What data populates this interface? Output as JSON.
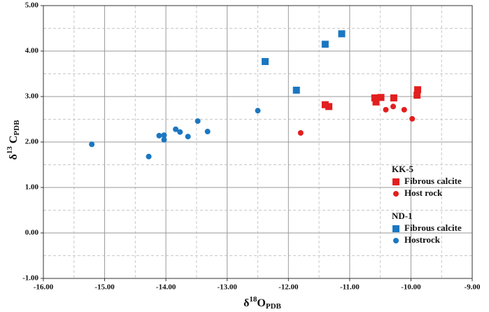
{
  "chart_data": {
    "type": "scatter",
    "x_label": {
      "prefix": "δ",
      "sup": "18",
      "main": "O",
      "sub": "PDB"
    },
    "y_label": {
      "prefix": "δ",
      "sup": "13",
      "main": " C",
      "sub": "PDB"
    },
    "xlim": [
      -16,
      -9
    ],
    "ylim": [
      -1,
      5
    ],
    "xticks": [
      {
        "value": -16,
        "label": "-16.00"
      },
      {
        "value": -15,
        "label": "-15.00"
      },
      {
        "value": -14,
        "label": "-14.00"
      },
      {
        "value": -13,
        "label": "-13.00"
      },
      {
        "value": -12,
        "label": "-12.00"
      },
      {
        "value": -11,
        "label": "-11.00"
      },
      {
        "value": -10,
        "label": "-10.00"
      },
      {
        "value": -9,
        "label": "-9.00"
      }
    ],
    "yticks": [
      {
        "value": -1,
        "label": "-1.00"
      },
      {
        "value": 0,
        "label": "0.00"
      },
      {
        "value": 1,
        "label": "1.00"
      },
      {
        "value": 2,
        "label": "2.00"
      },
      {
        "value": 3,
        "label": "3.00"
      },
      {
        "value": 4,
        "label": "4.00"
      },
      {
        "value": 5,
        "label": "5.00"
      }
    ],
    "x_minor_gridlines": [
      -15.5,
      -14.5,
      -13.5,
      -12.5,
      -11.5,
      -10.5,
      -9.5
    ],
    "y_minor_gridlines": [
      -0.5,
      0.5,
      1.5,
      2.5,
      3.5,
      4.5
    ],
    "grid": true,
    "legend_groups": [
      "KK-5",
      "ND-1"
    ],
    "series": [
      {
        "name": "Fibrous calcite",
        "group": 0,
        "marker": "square",
        "color": "#e31e1e",
        "x": [
          -10.59,
          -10.57,
          -10.49,
          -10.28,
          -11.4,
          -11.34,
          -9.89,
          -9.9
        ],
        "values": [
          2.97,
          2.88,
          2.98,
          2.97,
          2.82,
          2.78,
          3.15,
          3.03
        ]
      },
      {
        "name": "Host rock",
        "group": 0,
        "marker": "circle",
        "color": "#e31e1e",
        "x": [
          -11.8,
          -10.41,
          -10.29,
          -10.11,
          -9.98
        ],
        "values": [
          2.2,
          2.71,
          2.78,
          2.71,
          2.51
        ]
      },
      {
        "name": "Fibrous calcite",
        "group": 1,
        "marker": "square",
        "color": "#1b77c1",
        "x": [
          -12.38,
          -11.87,
          -11.4,
          -11.13
        ],
        "values": [
          3.77,
          3.14,
          4.15,
          4.38
        ]
      },
      {
        "name": "Hostrock",
        "group": 1,
        "marker": "circle",
        "color": "#1b77c1",
        "x": [
          -15.21,
          -14.28,
          -14.11,
          -14.03,
          -14.03,
          -13.84,
          -13.77,
          -13.64,
          -13.48,
          -13.32,
          -12.5
        ],
        "values": [
          1.95,
          1.68,
          2.14,
          2.15,
          2.05,
          2.28,
          2.22,
          2.12,
          2.46,
          2.23,
          2.69
        ]
      }
    ]
  }
}
